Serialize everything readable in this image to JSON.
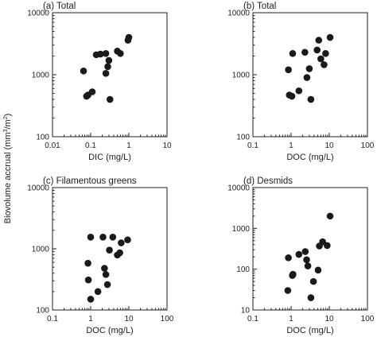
{
  "figure": {
    "ylabel_main": "Biovolume accrual (mm",
    "ylabel_sup1": "3",
    "ylabel_mid": "/m",
    "ylabel_sup2": "2",
    "ylabel_end": ")"
  },
  "chart_data": [
    {
      "type": "scatter",
      "title": "(a)  Total",
      "xlabel": "DIC (mg/L)",
      "ylabel": "",
      "xscale": "log",
      "yscale": "log",
      "xlim": [
        0.01,
        10
      ],
      "ylim": [
        100,
        10000
      ],
      "xticks": [
        "0.01",
        "0.1",
        "1",
        "10"
      ],
      "yticks": [
        "100",
        "1000",
        "10000"
      ],
      "points": [
        {
          "x": 0.065,
          "y": 1150
        },
        {
          "x": 0.078,
          "y": 450
        },
        {
          "x": 0.085,
          "y": 470
        },
        {
          "x": 0.11,
          "y": 530
        },
        {
          "x": 0.14,
          "y": 2100
        },
        {
          "x": 0.18,
          "y": 2150
        },
        {
          "x": 0.25,
          "y": 2200
        },
        {
          "x": 0.25,
          "y": 1050
        },
        {
          "x": 0.28,
          "y": 1350
        },
        {
          "x": 0.3,
          "y": 1700
        },
        {
          "x": 0.32,
          "y": 400
        },
        {
          "x": 0.5,
          "y": 2400
        },
        {
          "x": 0.6,
          "y": 2200
        },
        {
          "x": 0.95,
          "y": 3600
        },
        {
          "x": 1.0,
          "y": 4000
        }
      ]
    },
    {
      "type": "scatter",
      "title": "(b)  Total",
      "xlabel": "DOC (mg/L)",
      "ylabel": "",
      "xscale": "log",
      "yscale": "log",
      "xlim": [
        0.1,
        100
      ],
      "ylim": [
        100,
        10000
      ],
      "xticks": [
        "0.1",
        "1",
        "10",
        "100"
      ],
      "yticks": [
        "100",
        "1000",
        "10000"
      ],
      "points": [
        {
          "x": 0.85,
          "y": 1200
        },
        {
          "x": 0.9,
          "y": 470
        },
        {
          "x": 1.05,
          "y": 450
        },
        {
          "x": 1.1,
          "y": 2200
        },
        {
          "x": 1.6,
          "y": 550
        },
        {
          "x": 2.3,
          "y": 2300
        },
        {
          "x": 2.6,
          "y": 900
        },
        {
          "x": 3.0,
          "y": 1250
        },
        {
          "x": 3.3,
          "y": 400
        },
        {
          "x": 4.8,
          "y": 2500
        },
        {
          "x": 5.3,
          "y": 3600
        },
        {
          "x": 6.0,
          "y": 1800
        },
        {
          "x": 7.3,
          "y": 1450
        },
        {
          "x": 8.0,
          "y": 2200
        },
        {
          "x": 10.5,
          "y": 4000
        }
      ]
    },
    {
      "type": "scatter",
      "title": "(c)  Filamentous greens",
      "xlabel": "DOC (mg/L)",
      "ylabel": "",
      "xscale": "log",
      "yscale": "log",
      "xlim": [
        0.1,
        100
      ],
      "ylim": [
        100,
        10000
      ],
      "xticks": [
        "0.1",
        "1",
        "10",
        "100"
      ],
      "yticks": [
        "100",
        "1000",
        "10000"
      ],
      "points": [
        {
          "x": 0.85,
          "y": 580
        },
        {
          "x": 0.87,
          "y": 310
        },
        {
          "x": 1.0,
          "y": 1550
        },
        {
          "x": 1.0,
          "y": 150
        },
        {
          "x": 1.55,
          "y": 200
        },
        {
          "x": 2.1,
          "y": 1550
        },
        {
          "x": 2.3,
          "y": 480
        },
        {
          "x": 2.5,
          "y": 380
        },
        {
          "x": 2.75,
          "y": 260
        },
        {
          "x": 3.1,
          "y": 950
        },
        {
          "x": 3.8,
          "y": 1550
        },
        {
          "x": 5.0,
          "y": 790
        },
        {
          "x": 5.8,
          "y": 860
        },
        {
          "x": 6.3,
          "y": 1250
        },
        {
          "x": 9.3,
          "y": 1400
        }
      ]
    },
    {
      "type": "scatter",
      "title": "(d)  Desmids",
      "xlabel": "DOC (mg/L)",
      "ylabel": "",
      "xscale": "log",
      "yscale": "log",
      "xlim": [
        0.1,
        100
      ],
      "ylim": [
        10,
        10000
      ],
      "xticks": [
        "0.1",
        "1",
        "10",
        "100"
      ],
      "yticks": [
        "10",
        "100",
        "1000",
        "10000"
      ],
      "points": [
        {
          "x": 0.82,
          "y": 30
        },
        {
          "x": 0.85,
          "y": 190
        },
        {
          "x": 1.08,
          "y": 70
        },
        {
          "x": 1.12,
          "y": 75
        },
        {
          "x": 1.6,
          "y": 230
        },
        {
          "x": 2.35,
          "y": 270
        },
        {
          "x": 2.55,
          "y": 170
        },
        {
          "x": 2.75,
          "y": 120
        },
        {
          "x": 3.3,
          "y": 20
        },
        {
          "x": 3.85,
          "y": 50
        },
        {
          "x": 5.1,
          "y": 95
        },
        {
          "x": 5.5,
          "y": 370
        },
        {
          "x": 6.7,
          "y": 470
        },
        {
          "x": 8.8,
          "y": 380
        },
        {
          "x": 10.5,
          "y": 2000
        }
      ]
    }
  ]
}
